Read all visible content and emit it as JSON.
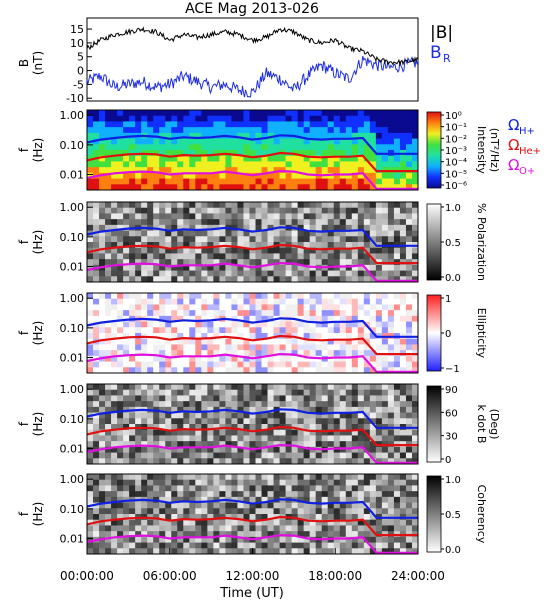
{
  "title": "ACE Mag 2013-026",
  "x_axis": {
    "label": "Time (UT)",
    "ticks": [
      "00:00:00",
      "06:00:00",
      "12:00:00",
      "18:00:00",
      "24:00:00"
    ],
    "range_hours": [
      0,
      24
    ]
  },
  "colors": {
    "B_total": "#000000",
    "B_R": "#1f2fe0",
    "omega_H": "#1020e0",
    "omega_He": "#e01010",
    "omega_O": "#e010e0"
  },
  "field_panel": {
    "ylabel": "B",
    "yunit": "(nT)",
    "yticks": [
      "15",
      "10",
      "5",
      "0",
      "-5",
      "-10"
    ],
    "legend": [
      {
        "text": "|B|",
        "sub": "",
        "color_key": "B_total"
      },
      {
        "text": "B",
        "sub": "R",
        "color_key": "B_R"
      }
    ]
  },
  "freq_ylabel": "f",
  "freq_yunit": "(Hz)",
  "freq_yticks": [
    "1.00",
    "0.10",
    "0.01"
  ],
  "panels": [
    {
      "name": "intensity",
      "cbar_label_lines": [
        "Intensity",
        "(nT²/Hz)"
      ],
      "cbar_ticks": [
        "10⁰",
        "10⁻¹",
        "10⁻²",
        "10⁻³",
        "10⁻⁴",
        "10⁻⁵",
        "10⁻⁶"
      ],
      "legend": [
        {
          "text": "Ω",
          "sub": "H+",
          "color_key": "omega_H"
        },
        {
          "text": "Ω",
          "sub": "He+",
          "color_key": "omega_He"
        },
        {
          "text": "Ω",
          "sub": "O+",
          "color_key": "omega_O"
        }
      ]
    },
    {
      "name": "polarization",
      "cbar_label_lines": [
        "% Polarization"
      ],
      "cbar_ticks": [
        "1.0",
        "0.5",
        "0.0"
      ]
    },
    {
      "name": "ellipticity",
      "cbar_label_lines": [
        "Ellipticity"
      ],
      "cbar_ticks": [
        "1",
        "0",
        "−1"
      ]
    },
    {
      "name": "wave-normal",
      "cbar_label_lines": [
        "k dot B",
        "(Deg)"
      ],
      "cbar_ticks": [
        "90",
        "60",
        "30",
        "0"
      ]
    },
    {
      "name": "coherency",
      "cbar_label_lines": [
        "Coherency"
      ],
      "cbar_ticks": [
        "1.0",
        "0.5",
        "0.0"
      ]
    }
  ],
  "chart_data": {
    "type": "line",
    "title": "ACE Mag 2013-026",
    "xlabel": "Time (UT)",
    "x_hours": [
      0,
      1,
      2,
      3,
      4,
      5,
      6,
      7,
      8,
      9,
      10,
      11,
      12,
      13,
      14,
      15,
      16,
      17,
      18,
      19,
      20,
      21,
      22,
      23,
      24
    ],
    "magnetic_field": {
      "ylabel": "B (nT)",
      "ylim": [
        -11,
        19
      ],
      "series": [
        {
          "name": "|B|",
          "values": [
            8,
            11,
            13,
            14,
            15,
            14,
            11,
            13,
            12,
            13,
            14,
            13,
            11,
            12,
            15,
            14,
            11,
            10,
            11,
            8,
            7,
            4,
            3,
            3,
            4
          ]
        },
        {
          "name": "B_R",
          "values": [
            -4,
            -2,
            -6,
            -5,
            -4,
            -6,
            -5,
            -2,
            -4,
            -6,
            -5,
            -7,
            -8,
            -1,
            -3,
            -7,
            -2,
            2,
            -1,
            -3,
            4,
            2,
            1,
            2,
            3
          ]
        }
      ]
    },
    "gyrofrequencies_hz": {
      "ylabel": "f (Hz)",
      "ylim": [
        0.003,
        1.5
      ],
      "yscale": "log",
      "series": [
        {
          "name": "Ω_H+",
          "values": [
            0.12,
            0.15,
            0.17,
            0.19,
            0.2,
            0.19,
            0.16,
            0.18,
            0.17,
            0.18,
            0.2,
            0.18,
            0.15,
            0.17,
            0.21,
            0.2,
            0.16,
            0.15,
            0.16,
            0.16,
            0.17,
            0.05,
            0.05,
            0.05,
            0.05
          ]
        },
        {
          "name": "Ω_He+",
          "values": [
            0.03,
            0.038,
            0.043,
            0.048,
            0.05,
            0.048,
            0.04,
            0.045,
            0.043,
            0.045,
            0.05,
            0.045,
            0.038,
            0.043,
            0.053,
            0.05,
            0.04,
            0.038,
            0.04,
            0.04,
            0.043,
            0.013,
            0.013,
            0.013,
            0.013
          ]
        },
        {
          "name": "Ω_O+",
          "values": [
            0.0076,
            0.0094,
            0.011,
            0.012,
            0.0125,
            0.012,
            0.01,
            0.011,
            0.011,
            0.011,
            0.0125,
            0.011,
            0.0094,
            0.011,
            0.013,
            0.0125,
            0.01,
            0.0094,
            0.01,
            0.01,
            0.011,
            0.0033,
            0.0033,
            0.0033,
            0.0033
          ]
        }
      ]
    }
  }
}
